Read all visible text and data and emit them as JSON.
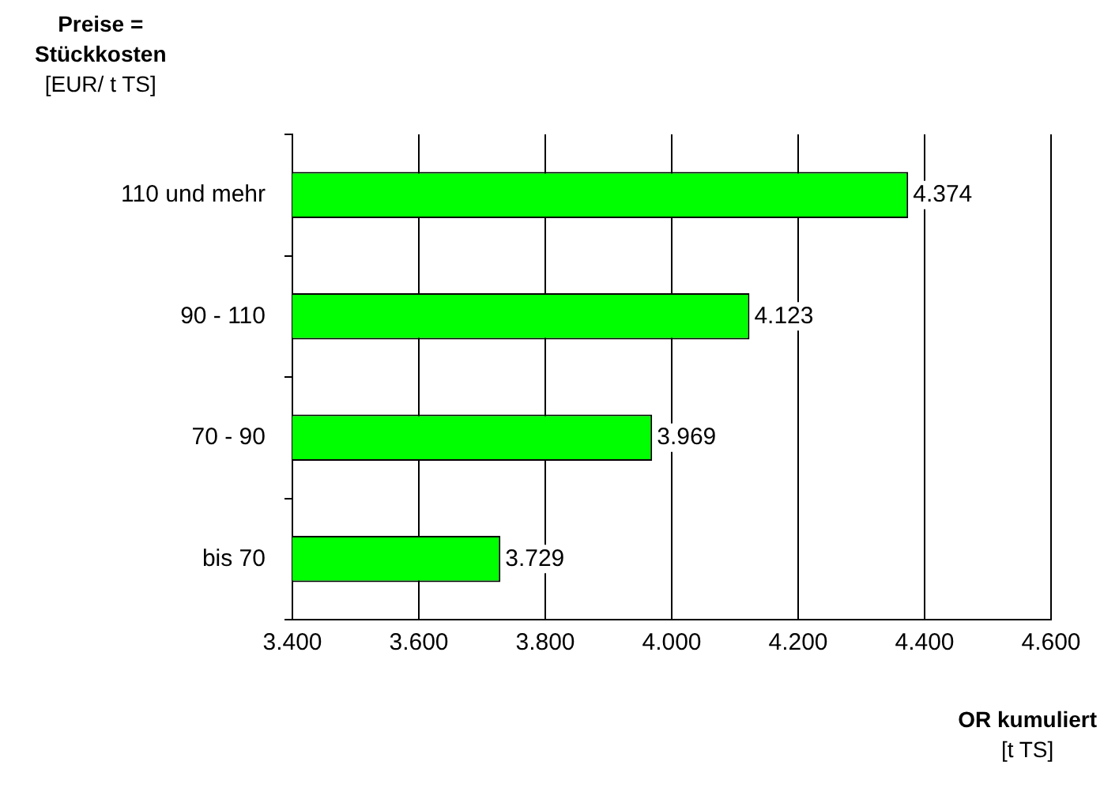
{
  "chart_data": {
    "type": "bar",
    "orientation": "horizontal",
    "ylabel": "Preise =\nStückkosten\n[EUR/ t TS]",
    "xlabel": "OR kumuliert\n[t TS]",
    "categories": [
      "110 und mehr",
      "90 - 110",
      "70 - 90",
      "bis 70"
    ],
    "values": [
      4374,
      4123,
      3969,
      3729
    ],
    "value_labels": [
      "4.374",
      "4.123",
      "3.969",
      "3.729"
    ],
    "color": "#00ff00",
    "xlim": [
      3400,
      4600
    ],
    "xticks": [
      {
        "value": 3400,
        "label": "3.400"
      },
      {
        "value": 3600,
        "label": "3.600"
      },
      {
        "value": 3800,
        "label": "3.800"
      },
      {
        "value": 4000,
        "label": "4.000"
      },
      {
        "value": 4200,
        "label": "4.200"
      },
      {
        "value": 4400,
        "label": "4.400"
      },
      {
        "value": 4600,
        "label": "4.600"
      }
    ],
    "grid": "x",
    "legend": false
  }
}
